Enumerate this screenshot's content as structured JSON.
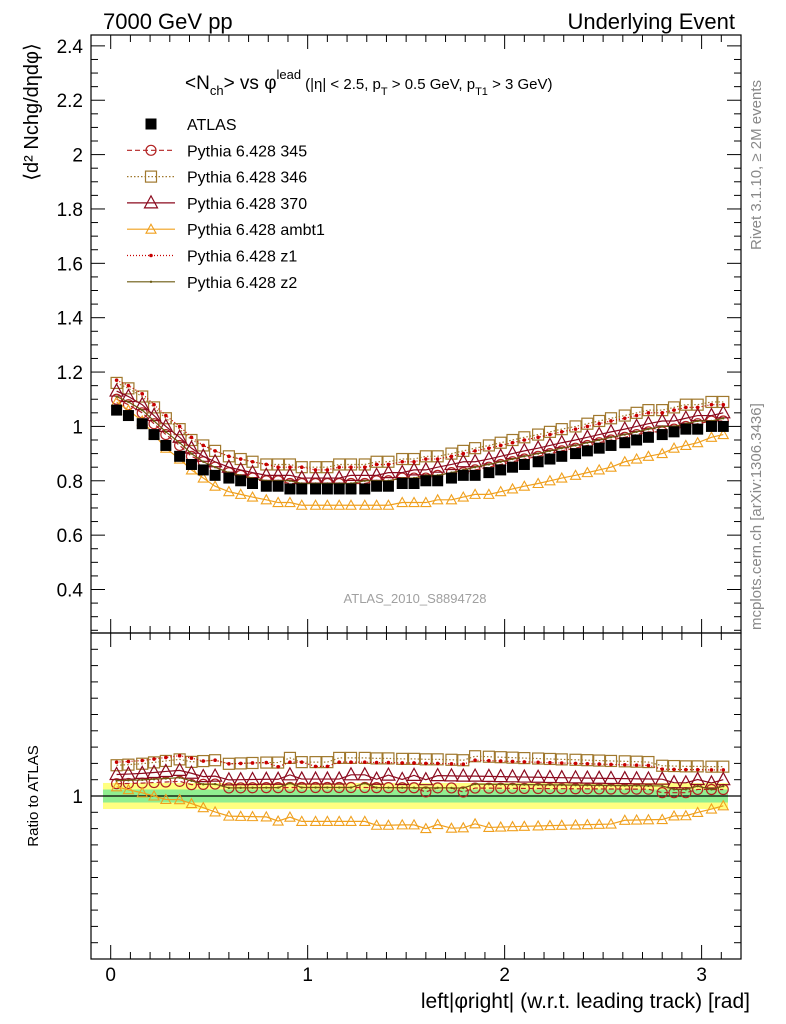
{
  "header": {
    "left": "7000 GeV pp",
    "right": "Underlying Event"
  },
  "side": {
    "rivet": "Rivet 3.1.10, ≥ 2M events",
    "mcplots": "mcplots.cern.ch [arXiv:1306.3436]"
  },
  "plot_title": {
    "main": "<N",
    "main_sub": "ch",
    "vs": "> vs φ",
    "vs_sup": "lead",
    "cut_1": "(|η| < 2.5, p",
    "cut_1_sub": "T",
    "cut_2": " > 0.5 GeV, p",
    "cut_2_sub": "T1",
    "cut_3": " > 3 GeV)"
  },
  "watermark": "ATLAS_2010_S8894728",
  "colors": {
    "atlas": "#000000",
    "p345": "#b22222",
    "p346": "#a0782d",
    "p370": "#8b0a1e",
    "ambt1": "#f0a01e",
    "z1": "#c80000",
    "z2": "#6b5a10",
    "band_outer": "#ffff80",
    "band_inner": "#90ee90"
  },
  "chart_data": {
    "type": "line",
    "title": "<Nch> vs φlead (|η| < 2.5, pT > 0.5 GeV, pT1 > 3 GeV)",
    "ylabel": "⟨d² Nchg/dηdφ⟩",
    "ratio_ylabel": "Ratio to ATLAS",
    "xlabel": "left|φright| (w.r.t. leading track) [rad]",
    "xlim": [
      -0.1,
      3.2
    ],
    "ylim": [
      0.24,
      2.44
    ],
    "ratio_ylim": [
      0.5,
      1.5
    ],
    "y_ticks": [
      "0.4",
      "0.6",
      "0.8",
      "1",
      "1.2",
      "1.4",
      "1.6",
      "1.8",
      "2",
      "2.2",
      "2.4"
    ],
    "x_ticks": [
      "0",
      "1",
      "2",
      "3"
    ],
    "ratio_ticks": [
      "1"
    ],
    "legend_position": "top-left",
    "x": [
      0.03,
      0.09,
      0.16,
      0.22,
      0.28,
      0.35,
      0.41,
      0.47,
      0.53,
      0.6,
      0.66,
      0.72,
      0.79,
      0.85,
      0.91,
      0.97,
      1.04,
      1.1,
      1.16,
      1.22,
      1.29,
      1.35,
      1.41,
      1.48,
      1.54,
      1.6,
      1.66,
      1.73,
      1.79,
      1.85,
      1.92,
      1.98,
      2.04,
      2.1,
      2.17,
      2.23,
      2.29,
      2.36,
      2.42,
      2.48,
      2.54,
      2.61,
      2.67,
      2.73,
      2.8,
      2.86,
      2.92,
      2.98,
      3.05,
      3.11
    ],
    "series": [
      {
        "name": "ATLAS",
        "key": "atlas",
        "marker": "square-filled",
        "dash": "",
        "values": [
          1.06,
          1.04,
          1.01,
          0.97,
          0.93,
          0.89,
          0.86,
          0.84,
          0.82,
          0.81,
          0.8,
          0.79,
          0.78,
          0.78,
          0.77,
          0.77,
          0.77,
          0.77,
          0.77,
          0.77,
          0.77,
          0.78,
          0.78,
          0.79,
          0.79,
          0.8,
          0.8,
          0.81,
          0.82,
          0.82,
          0.83,
          0.84,
          0.85,
          0.86,
          0.87,
          0.88,
          0.89,
          0.9,
          0.91,
          0.92,
          0.93,
          0.94,
          0.95,
          0.96,
          0.97,
          0.98,
          0.99,
          0.99,
          1.0,
          1.0
        ]
      },
      {
        "name": "Pythia 6.428 345",
        "key": "p345",
        "marker": "circle-open",
        "dash": "5,3",
        "values": [
          1.1,
          1.08,
          1.05,
          1.01,
          0.97,
          0.93,
          0.89,
          0.87,
          0.85,
          0.83,
          0.82,
          0.81,
          0.8,
          0.8,
          0.79,
          0.79,
          0.79,
          0.79,
          0.79,
          0.79,
          0.79,
          0.8,
          0.8,
          0.81,
          0.81,
          0.81,
          0.82,
          0.83,
          0.83,
          0.84,
          0.85,
          0.86,
          0.87,
          0.88,
          0.89,
          0.9,
          0.91,
          0.92,
          0.93,
          0.94,
          0.95,
          0.96,
          0.97,
          0.98,
          0.98,
          0.99,
          1.0,
          1.01,
          1.02,
          1.02
        ]
      },
      {
        "name": "Pythia 6.428 346",
        "key": "p346",
        "marker": "square-open",
        "dash": "1.5,2",
        "values": [
          1.16,
          1.14,
          1.11,
          1.07,
          1.03,
          0.99,
          0.95,
          0.93,
          0.91,
          0.89,
          0.88,
          0.87,
          0.86,
          0.86,
          0.86,
          0.85,
          0.85,
          0.85,
          0.86,
          0.86,
          0.86,
          0.87,
          0.87,
          0.88,
          0.88,
          0.89,
          0.89,
          0.9,
          0.91,
          0.92,
          0.93,
          0.94,
          0.95,
          0.96,
          0.97,
          0.98,
          0.99,
          1.0,
          1.01,
          1.02,
          1.03,
          1.04,
          1.05,
          1.06,
          1.06,
          1.07,
          1.08,
          1.08,
          1.09,
          1.09
        ]
      },
      {
        "name": "Pythia 6.428 370",
        "key": "p370",
        "marker": "triangle-open",
        "dash": "",
        "values": [
          1.13,
          1.11,
          1.08,
          1.04,
          1.0,
          0.96,
          0.92,
          0.89,
          0.87,
          0.85,
          0.84,
          0.83,
          0.82,
          0.82,
          0.82,
          0.81,
          0.81,
          0.81,
          0.81,
          0.82,
          0.82,
          0.82,
          0.83,
          0.83,
          0.84,
          0.84,
          0.85,
          0.86,
          0.87,
          0.87,
          0.88,
          0.89,
          0.9,
          0.91,
          0.92,
          0.93,
          0.94,
          0.95,
          0.96,
          0.97,
          0.98,
          0.99,
          1.0,
          1.01,
          1.02,
          1.02,
          1.03,
          1.04,
          1.04,
          1.05
        ]
      },
      {
        "name": "Pythia 6.428 ambt1",
        "key": "ambt1",
        "marker": "triangle-open-small",
        "dash": "",
        "values": [
          1.09,
          1.06,
          1.02,
          0.97,
          0.92,
          0.88,
          0.84,
          0.81,
          0.78,
          0.76,
          0.75,
          0.74,
          0.73,
          0.72,
          0.72,
          0.71,
          0.71,
          0.71,
          0.71,
          0.71,
          0.71,
          0.71,
          0.71,
          0.72,
          0.72,
          0.72,
          0.73,
          0.73,
          0.74,
          0.75,
          0.75,
          0.76,
          0.77,
          0.78,
          0.79,
          0.8,
          0.81,
          0.82,
          0.83,
          0.84,
          0.85,
          0.87,
          0.88,
          0.89,
          0.9,
          0.92,
          0.93,
          0.94,
          0.96,
          0.97
        ]
      },
      {
        "name": "Pythia 6.428 z1",
        "key": "z1",
        "marker": "dot",
        "dash": "1,2",
        "values": [
          1.17,
          1.15,
          1.12,
          1.08,
          1.04,
          1.0,
          0.96,
          0.93,
          0.91,
          0.89,
          0.88,
          0.87,
          0.86,
          0.85,
          0.85,
          0.85,
          0.84,
          0.84,
          0.85,
          0.85,
          0.85,
          0.86,
          0.86,
          0.87,
          0.87,
          0.88,
          0.88,
          0.89,
          0.9,
          0.91,
          0.92,
          0.93,
          0.94,
          0.95,
          0.96,
          0.97,
          0.98,
          0.99,
          1.0,
          1.01,
          1.02,
          1.03,
          1.04,
          1.05,
          1.05,
          1.06,
          1.07,
          1.07,
          1.08,
          1.08
        ]
      },
      {
        "name": "Pythia 6.428 z2",
        "key": "z2",
        "marker": "dot-small",
        "dash": "",
        "values": [
          1.11,
          1.09,
          1.06,
          1.02,
          0.98,
          0.94,
          0.9,
          0.87,
          0.85,
          0.83,
          0.82,
          0.81,
          0.8,
          0.8,
          0.8,
          0.79,
          0.79,
          0.79,
          0.79,
          0.79,
          0.8,
          0.8,
          0.8,
          0.81,
          0.81,
          0.82,
          0.82,
          0.83,
          0.84,
          0.85,
          0.86,
          0.87,
          0.88,
          0.89,
          0.9,
          0.91,
          0.92,
          0.93,
          0.94,
          0.95,
          0.96,
          0.97,
          0.98,
          0.99,
          1.0,
          1.0,
          1.01,
          1.02,
          1.02,
          1.03
        ]
      }
    ]
  }
}
